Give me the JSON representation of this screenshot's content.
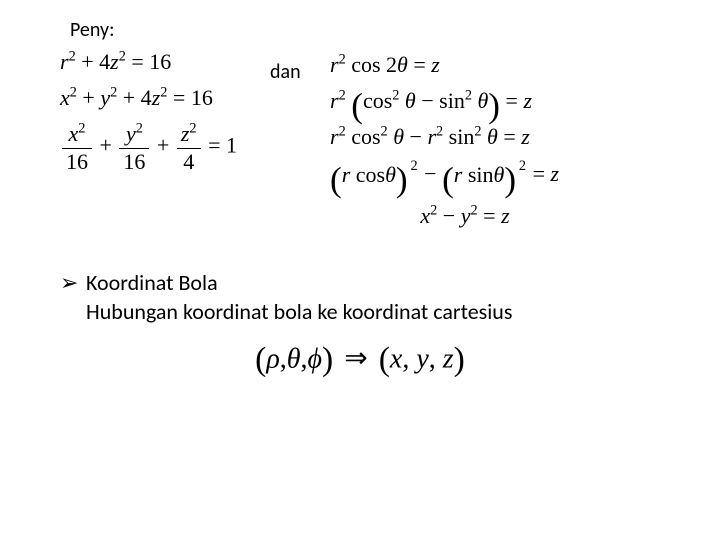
{
  "header": {
    "peny": "Peny:",
    "dan": "dan"
  },
  "left": {
    "eq1_html": "<span>r</span><sup>2</sup> <span class='rm'>+ 4</span><span>z</span><sup>2</sup> <span class='rm'>= 16</span>",
    "eq2_html": "<span>x</span><sup>2</sup> <span class='rm'>+</span> <span>y</span><sup>2</sup> <span class='rm'>+ 4</span><span>z</span><sup>2</sup> <span class='rm'>= 16</span>",
    "eq3_html": "<span class='frac'><span class='num'><span>x</span><sup>2</sup></span><span class='den'>16</span></span> <span class='rm'>+</span> <span class='frac'><span class='num'><span>y</span><sup>2</sup></span><span class='den'>16</span></span> <span class='rm'>+</span> <span class='frac'><span class='num'><span>z</span><sup>2</sup></span><span class='den'>4</span></span> <span class='rm'>= 1</span>"
  },
  "right": {
    "eq1_html": "<span>r</span><sup>2</sup> <span class='rm'>cos 2</span><span>θ</span> <span class='rm'>=</span> <span>z</span>",
    "eq2_html": "<span>r</span><sup>2</sup> <span class='big-paren'>(</span><span class='rm'>cos</span><sup>2</sup> <span>θ</span> <span class='rm'>− sin</span><sup>2</sup> <span>θ</span><span class='big-paren'>)</span> <span class='rm'>=</span> <span>z</span>",
    "eq3_html": "<span>r</span><sup>2</sup> <span class='rm'>cos</span><sup>2</sup> <span>θ</span> <span class='rm'>−</span> <span>r</span><sup>2</sup> <span class='rm'>sin</span><sup>2</sup> <span>θ</span> <span class='rm'>=</span> <span>z</span>",
    "eq4_html": "<span class='paren-term'><span class='big-paren'>(</span><span>r</span> <span class='rm'>cos</span><span>θ</span><span class='big-paren'>)</span><span class='outer-sup'>2</span></span>&nbsp;&nbsp; <span class='rm'>−</span> <span class='paren-term'><span class='big-paren'>(</span><span>r</span> <span class='rm'>sin</span><span>θ</span><span class='big-paren'>)</span><span class='outer-sup'>2</span></span>&nbsp;&nbsp; <span class='rm'>=</span> <span>z</span>",
    "eq5_html": "<span>x</span><sup>2</sup> <span class='rm'>−</span> <span>y</span><sup>2</sup> <span class='rm'>=</span> <span>z</span>"
  },
  "bullets": {
    "glyph": "➢",
    "line1": "Koordinat Bola",
    "line2": "Hubungan koordinat bola ke koordinat cartesius"
  },
  "relation_html": "<span class='big'>(</span><span class='it'>ρ</span>,<span class='it'>θ</span>,<span class='it'>ϕ</span><span class='big'>)</span> <span class='arrow'>⇒</span> <span class='big'>(</span><span class='it'>x</span>, <span class='it'>y</span>, <span class='it'>z</span><span class='big'>)</span>"
}
